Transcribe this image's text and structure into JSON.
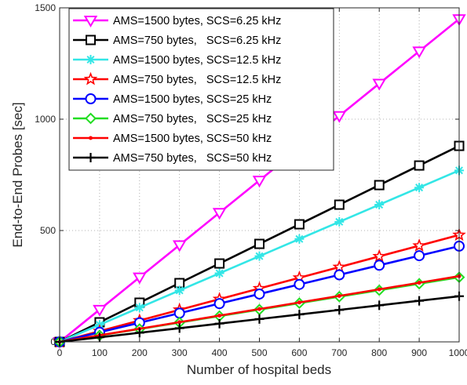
{
  "chart_data": {
    "type": "line",
    "title": "",
    "xlabel": "Number of hospital beds",
    "ylabel": "End-to-End Probes [sec]",
    "xlim": [
      0,
      1000
    ],
    "ylim": [
      0,
      1500
    ],
    "x_ticks": [
      "0",
      "100",
      "200",
      "300",
      "400",
      "500",
      "600",
      "700",
      "800",
      "900",
      "1000"
    ],
    "y_ticks": [
      "0",
      "500",
      "1000",
      "1500"
    ],
    "grid": true,
    "grid_style": "dotted",
    "legend_position": "top-left",
    "x": [
      0,
      100,
      200,
      300,
      400,
      500,
      600,
      700,
      800,
      900,
      1000
    ],
    "series": [
      {
        "name": "AMS=1500 bytes, SCS=6.25 kHz",
        "color": "#ff00ff",
        "marker": "triangle-down",
        "values": [
          0,
          145,
          290,
          435,
          580,
          725,
          870,
          1015,
          1160,
          1305,
          1450
        ]
      },
      {
        "name": "AMS=750 bytes,   SCS=6.25 kHz",
        "color": "#000000",
        "marker": "square",
        "values": [
          0,
          88,
          176,
          264,
          352,
          440,
          528,
          616,
          704,
          792,
          880
        ]
      },
      {
        "name": "AMS=1500 bytes, SCS=12.5 kHz",
        "color": "#33e6e6",
        "marker": "asterisk",
        "values": [
          0,
          77,
          154,
          231,
          308,
          385,
          462,
          539,
          616,
          693,
          770
        ]
      },
      {
        "name": "AMS=750 bytes,   SCS=12.5 kHz",
        "color": "#ff0000",
        "marker": "pentagram",
        "values": [
          0,
          48,
          96,
          144,
          192,
          240,
          288,
          336,
          384,
          432,
          480
        ]
      },
      {
        "name": "AMS=1500 bytes, SCS=25 kHz",
        "color": "#0000ff",
        "marker": "circle",
        "values": [
          0,
          43,
          86,
          129,
          172,
          215,
          258,
          301,
          344,
          387,
          430
        ]
      },
      {
        "name": "AMS=750 bytes,   SCS=25 kHz",
        "color": "#22dd22",
        "marker": "diamond",
        "values": [
          0,
          29,
          58,
          87,
          116,
          145,
          174,
          203,
          232,
          261,
          290
        ]
      },
      {
        "name": "AMS=1500 bytes, SCS=50 kHz",
        "color": "#ff0000",
        "marker": "point",
        "values": [
          0,
          29.5,
          59,
          88.5,
          118,
          147.5,
          177,
          206.5,
          236,
          265.5,
          295
        ]
      },
      {
        "name": "AMS=750 bytes,   SCS=50 kHz",
        "color": "#000000",
        "marker": "plus",
        "values": [
          0,
          20.5,
          41,
          61.5,
          82,
          102.5,
          123,
          143.5,
          164,
          184.5,
          205
        ]
      }
    ]
  }
}
